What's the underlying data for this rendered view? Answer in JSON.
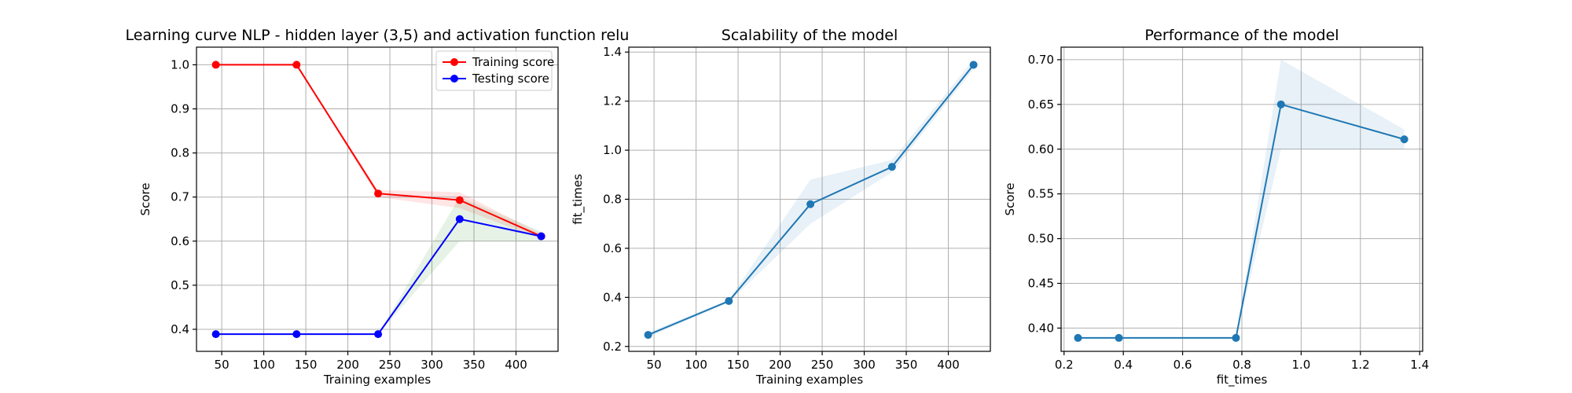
{
  "chart_data": [
    {
      "type": "line",
      "title": "Learning curve NLP - hidden layer (3,5) and activation function relu",
      "xlabel": "Training examples",
      "ylabel": "Score",
      "xlim": [
        20,
        450
      ],
      "ylim": [
        0.35,
        1.04
      ],
      "xticks": [
        50,
        100,
        150,
        200,
        250,
        300,
        350,
        400
      ],
      "yticks": [
        0.4,
        0.5,
        0.6,
        0.7,
        0.8,
        0.9,
        1.0
      ],
      "x": [
        43,
        139,
        236,
        333,
        430
      ],
      "grid": true,
      "legend": "top-right",
      "series": [
        {
          "name": "Training score",
          "color": "#ff0000",
          "values": [
            1.0,
            1.0,
            0.708,
            0.693,
            0.611
          ],
          "band_lower": [
            1.0,
            1.0,
            0.7,
            0.675,
            0.605
          ],
          "band_upper": [
            1.0,
            1.0,
            0.716,
            0.711,
            0.617
          ],
          "band_color": "#ff0000"
        },
        {
          "name": "Testing score",
          "color": "#0000ff",
          "values": [
            0.389,
            0.389,
            0.389,
            0.65,
            0.611
          ],
          "band_lower": [
            0.389,
            0.389,
            0.389,
            0.6,
            0.6
          ],
          "band_upper": [
            0.389,
            0.389,
            0.389,
            0.7,
            0.622
          ],
          "band_color": "#008000"
        }
      ]
    },
    {
      "type": "line",
      "title": "Scalability of the model",
      "xlabel": "Training examples",
      "ylabel": "fit_times",
      "xlim": [
        20,
        450
      ],
      "ylim": [
        0.18,
        1.42
      ],
      "xticks": [
        50,
        100,
        150,
        200,
        250,
        300,
        350,
        400
      ],
      "yticks": [
        0.2,
        0.4,
        0.6,
        0.8,
        1.0,
        1.2,
        1.4
      ],
      "x": [
        43,
        139,
        236,
        333,
        430
      ],
      "grid": true,
      "series": [
        {
          "color": "#1f77b4",
          "values": [
            0.247,
            0.385,
            0.78,
            0.932,
            1.348
          ],
          "band_lower": [
            0.237,
            0.38,
            0.7,
            0.91,
            1.33
          ],
          "band_upper": [
            0.257,
            0.39,
            0.88,
            0.96,
            1.37
          ],
          "band_color": "#1f77b4"
        }
      ]
    },
    {
      "type": "line",
      "title": "Performance of the model",
      "xlabel": "fit_times",
      "ylabel": "Score",
      "xlim": [
        0.19,
        1.41
      ],
      "ylim": [
        0.374,
        0.714
      ],
      "xticks": [
        0.2,
        0.4,
        0.6,
        0.8,
        1.0,
        1.2,
        1.4
      ],
      "yticks": [
        0.4,
        0.45,
        0.5,
        0.55,
        0.6,
        0.65,
        0.7
      ],
      "grid": true,
      "series": [
        {
          "color": "#1f77b4",
          "x": [
            0.247,
            0.385,
            0.78,
            0.932,
            1.348
          ],
          "values": [
            0.389,
            0.389,
            0.389,
            0.65,
            0.611
          ],
          "band_lower": [
            0.389,
            0.389,
            0.389,
            0.6,
            0.6
          ],
          "band_upper": [
            0.389,
            0.389,
            0.389,
            0.7,
            0.622
          ],
          "band_color": "#1f77b4"
        }
      ]
    }
  ]
}
